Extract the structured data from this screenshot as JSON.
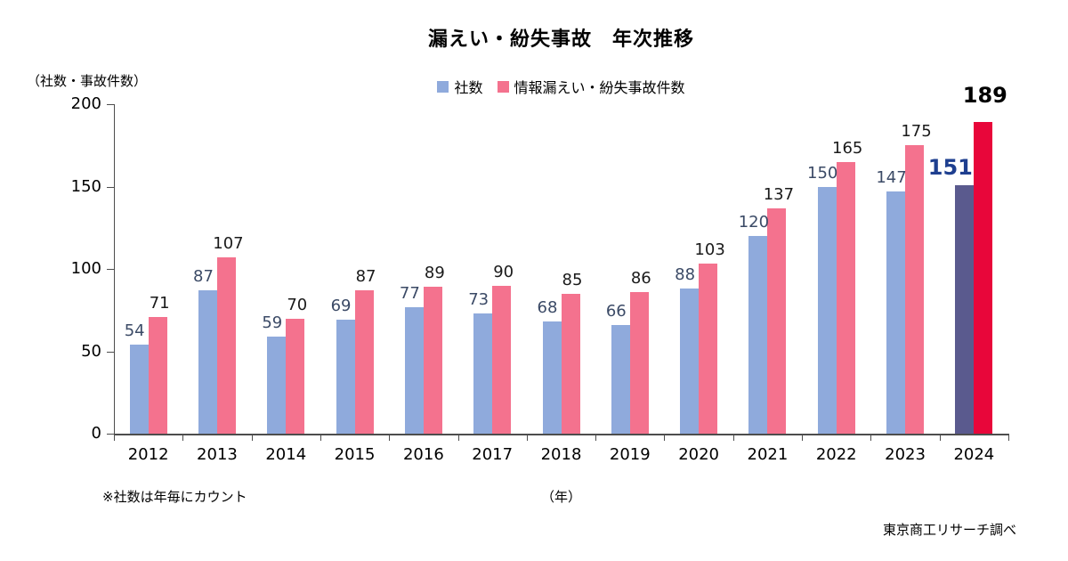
{
  "chart_data": {
    "type": "bar",
    "title": "漏えい・紛失事故　年次推移",
    "unit_label": "（社数・事故件数）",
    "x_unit_label": "（年）",
    "note": "※社数は年毎にカウント",
    "categories": [
      "2012",
      "2013",
      "2014",
      "2015",
      "2016",
      "2017",
      "2018",
      "2019",
      "2020",
      "2021",
      "2022",
      "2023",
      "2024"
    ],
    "series": [
      {
        "name": "社数",
        "color": "#8faadc",
        "highlight_color": "#5a5a8e",
        "label_color": "#3b4a66",
        "highlight_label_color": "#1e3f8f",
        "values": [
          54,
          87,
          59,
          69,
          77,
          73,
          68,
          66,
          88,
          120,
          150,
          147,
          151
        ]
      },
      {
        "name": "情報漏えい・紛失事故件数",
        "color": "#f4728e",
        "highlight_color": "#e8063a",
        "label_color": "#1a1a1a",
        "highlight_label_color": "#000000",
        "values": [
          71,
          107,
          70,
          87,
          89,
          90,
          85,
          86,
          103,
          137,
          165,
          175,
          189
        ]
      }
    ],
    "highlight_category": "2024",
    "ylim": [
      0,
      200
    ],
    "y_ticks": [
      0,
      50,
      100,
      150,
      200
    ],
    "grid": false,
    "legend_position": "top"
  },
  "source": "東京商工リサーチ調べ"
}
